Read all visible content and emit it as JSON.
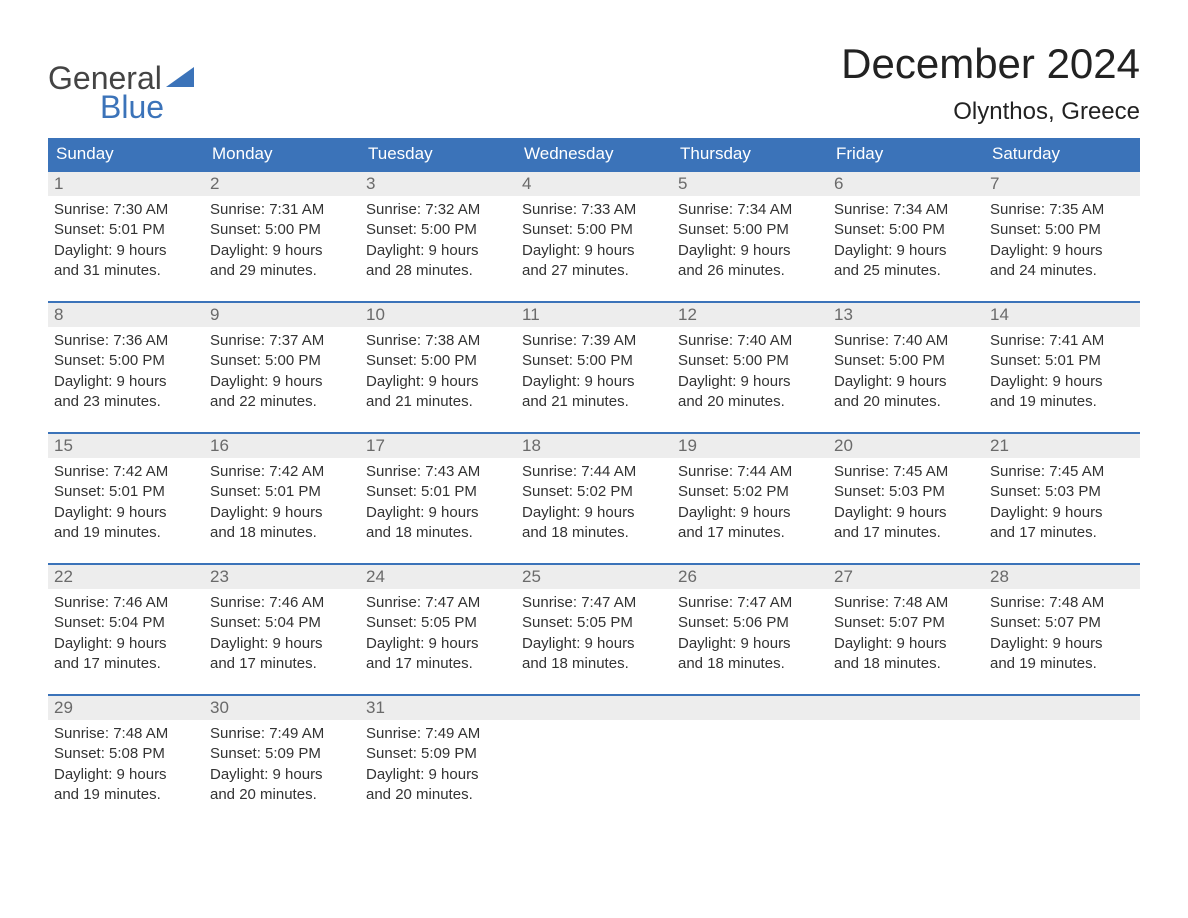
{
  "brand": {
    "word1": "General",
    "word2": "Blue",
    "accent": "#3b73b9",
    "text_color": "#444444"
  },
  "title": "December 2024",
  "location": "Olynthos, Greece",
  "colors": {
    "header_bg": "#3b73b9",
    "header_text": "#ffffff",
    "daynum_bg": "#ededed",
    "daynum_text": "#6a6a6a",
    "body_text": "#333333",
    "week_border": "#3b73b9",
    "page_bg": "#ffffff"
  },
  "fonts": {
    "title_size": 42,
    "location_size": 24,
    "dayhead_size": 17,
    "cell_size": 15
  },
  "day_names": [
    "Sunday",
    "Monday",
    "Tuesday",
    "Wednesday",
    "Thursday",
    "Friday",
    "Saturday"
  ],
  "weeks": [
    [
      {
        "n": "1",
        "sunrise": "7:30 AM",
        "sunset": "5:01 PM",
        "day_h": "9",
        "day_m": "31"
      },
      {
        "n": "2",
        "sunrise": "7:31 AM",
        "sunset": "5:00 PM",
        "day_h": "9",
        "day_m": "29"
      },
      {
        "n": "3",
        "sunrise": "7:32 AM",
        "sunset": "5:00 PM",
        "day_h": "9",
        "day_m": "28"
      },
      {
        "n": "4",
        "sunrise": "7:33 AM",
        "sunset": "5:00 PM",
        "day_h": "9",
        "day_m": "27"
      },
      {
        "n": "5",
        "sunrise": "7:34 AM",
        "sunset": "5:00 PM",
        "day_h": "9",
        "day_m": "26"
      },
      {
        "n": "6",
        "sunrise": "7:34 AM",
        "sunset": "5:00 PM",
        "day_h": "9",
        "day_m": "25"
      },
      {
        "n": "7",
        "sunrise": "7:35 AM",
        "sunset": "5:00 PM",
        "day_h": "9",
        "day_m": "24"
      }
    ],
    [
      {
        "n": "8",
        "sunrise": "7:36 AM",
        "sunset": "5:00 PM",
        "day_h": "9",
        "day_m": "23"
      },
      {
        "n": "9",
        "sunrise": "7:37 AM",
        "sunset": "5:00 PM",
        "day_h": "9",
        "day_m": "22"
      },
      {
        "n": "10",
        "sunrise": "7:38 AM",
        "sunset": "5:00 PM",
        "day_h": "9",
        "day_m": "21"
      },
      {
        "n": "11",
        "sunrise": "7:39 AM",
        "sunset": "5:00 PM",
        "day_h": "9",
        "day_m": "21"
      },
      {
        "n": "12",
        "sunrise": "7:40 AM",
        "sunset": "5:00 PM",
        "day_h": "9",
        "day_m": "20"
      },
      {
        "n": "13",
        "sunrise": "7:40 AM",
        "sunset": "5:00 PM",
        "day_h": "9",
        "day_m": "20"
      },
      {
        "n": "14",
        "sunrise": "7:41 AM",
        "sunset": "5:01 PM",
        "day_h": "9",
        "day_m": "19"
      }
    ],
    [
      {
        "n": "15",
        "sunrise": "7:42 AM",
        "sunset": "5:01 PM",
        "day_h": "9",
        "day_m": "19"
      },
      {
        "n": "16",
        "sunrise": "7:42 AM",
        "sunset": "5:01 PM",
        "day_h": "9",
        "day_m": "18"
      },
      {
        "n": "17",
        "sunrise": "7:43 AM",
        "sunset": "5:01 PM",
        "day_h": "9",
        "day_m": "18"
      },
      {
        "n": "18",
        "sunrise": "7:44 AM",
        "sunset": "5:02 PM",
        "day_h": "9",
        "day_m": "18"
      },
      {
        "n": "19",
        "sunrise": "7:44 AM",
        "sunset": "5:02 PM",
        "day_h": "9",
        "day_m": "17"
      },
      {
        "n": "20",
        "sunrise": "7:45 AM",
        "sunset": "5:03 PM",
        "day_h": "9",
        "day_m": "17"
      },
      {
        "n": "21",
        "sunrise": "7:45 AM",
        "sunset": "5:03 PM",
        "day_h": "9",
        "day_m": "17"
      }
    ],
    [
      {
        "n": "22",
        "sunrise": "7:46 AM",
        "sunset": "5:04 PM",
        "day_h": "9",
        "day_m": "17"
      },
      {
        "n": "23",
        "sunrise": "7:46 AM",
        "sunset": "5:04 PM",
        "day_h": "9",
        "day_m": "17"
      },
      {
        "n": "24",
        "sunrise": "7:47 AM",
        "sunset": "5:05 PM",
        "day_h": "9",
        "day_m": "17"
      },
      {
        "n": "25",
        "sunrise": "7:47 AM",
        "sunset": "5:05 PM",
        "day_h": "9",
        "day_m": "18"
      },
      {
        "n": "26",
        "sunrise": "7:47 AM",
        "sunset": "5:06 PM",
        "day_h": "9",
        "day_m": "18"
      },
      {
        "n": "27",
        "sunrise": "7:48 AM",
        "sunset": "5:07 PM",
        "day_h": "9",
        "day_m": "18"
      },
      {
        "n": "28",
        "sunrise": "7:48 AM",
        "sunset": "5:07 PM",
        "day_h": "9",
        "day_m": "19"
      }
    ],
    [
      {
        "n": "29",
        "sunrise": "7:48 AM",
        "sunset": "5:08 PM",
        "day_h": "9",
        "day_m": "19"
      },
      {
        "n": "30",
        "sunrise": "7:49 AM",
        "sunset": "5:09 PM",
        "day_h": "9",
        "day_m": "20"
      },
      {
        "n": "31",
        "sunrise": "7:49 AM",
        "sunset": "5:09 PM",
        "day_h": "9",
        "day_m": "20"
      },
      {
        "empty": true
      },
      {
        "empty": true
      },
      {
        "empty": true
      },
      {
        "empty": true
      }
    ]
  ],
  "labels": {
    "sunrise": "Sunrise: ",
    "sunset": "Sunset: ",
    "daylight1": "Daylight: ",
    "hours": " hours",
    "and": "and ",
    "minutes": " minutes."
  }
}
